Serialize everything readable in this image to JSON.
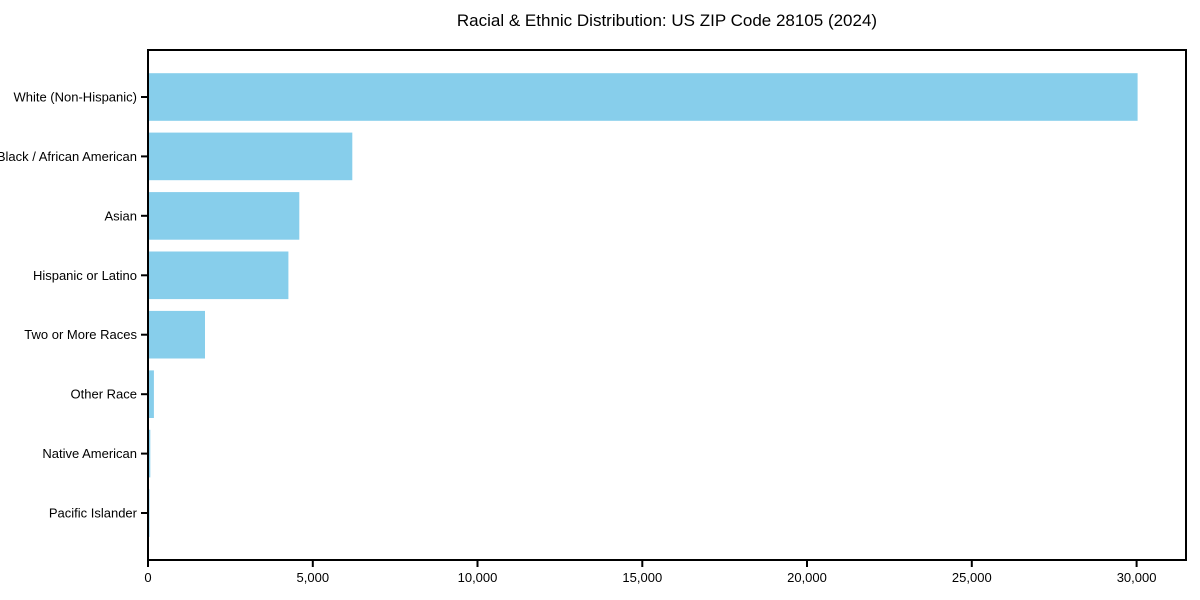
{
  "figure": {
    "background": "#ffffff"
  },
  "chart_data": {
    "type": "bar",
    "orientation": "horizontal",
    "title": "Racial & Ethnic Distribution: US ZIP Code 28105 (2024)",
    "categories": [
      "White (Non-Hispanic)",
      "Black / African American",
      "Asian",
      "Hispanic or Latino",
      "Two or More Races",
      "Other Race",
      "Native American",
      "Pacific Islander"
    ],
    "values": [
      30000,
      6170,
      4560,
      4230,
      1700,
      150,
      40,
      10
    ],
    "xlabel": "",
    "ylabel": "",
    "xlim": [
      0,
      31500
    ],
    "x_ticks": [
      0,
      5000,
      10000,
      15000,
      20000,
      25000,
      30000
    ],
    "x_tick_labels": [
      "0",
      "5,000",
      "10,000",
      "15,000",
      "20,000",
      "25,000",
      "30,000"
    ],
    "bar_color": "#87CEEB",
    "axis_color": "#000000",
    "text_color": "#000000",
    "grid": false,
    "legend": false
  }
}
